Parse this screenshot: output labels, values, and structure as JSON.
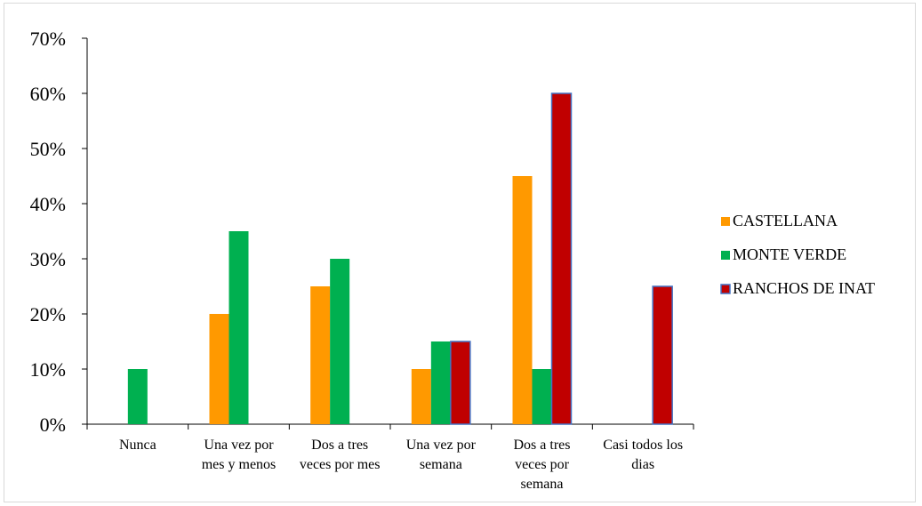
{
  "chart_data": {
    "type": "bar",
    "categories": [
      [
        "Nunca"
      ],
      [
        "Una vez por",
        "mes y menos"
      ],
      [
        "Dos a tres",
        "veces por mes"
      ],
      [
        "Una vez por",
        "semana"
      ],
      [
        "Dos a tres",
        "veces por",
        "semana"
      ],
      [
        "Casi todos los",
        "dias"
      ]
    ],
    "series": [
      {
        "name": "CASTELLANA",
        "color": "#ff9900",
        "values": [
          0,
          20,
          25,
          10,
          45,
          0
        ]
      },
      {
        "name": "MONTE VERDE",
        "color": "#00b050",
        "values": [
          10,
          35,
          30,
          15,
          10,
          0
        ]
      },
      {
        "name": "RANCHOS DE INAT",
        "color": "#c00000",
        "stroke": "#4472c4",
        "values": [
          0,
          0,
          0,
          15,
          60,
          25
        ]
      }
    ],
    "ylim": [
      0,
      70
    ],
    "yticks": [
      "0%",
      "10%",
      "20%",
      "30%",
      "40%",
      "50%",
      "60%",
      "70%"
    ],
    "legend_position": "right",
    "grid": false
  }
}
